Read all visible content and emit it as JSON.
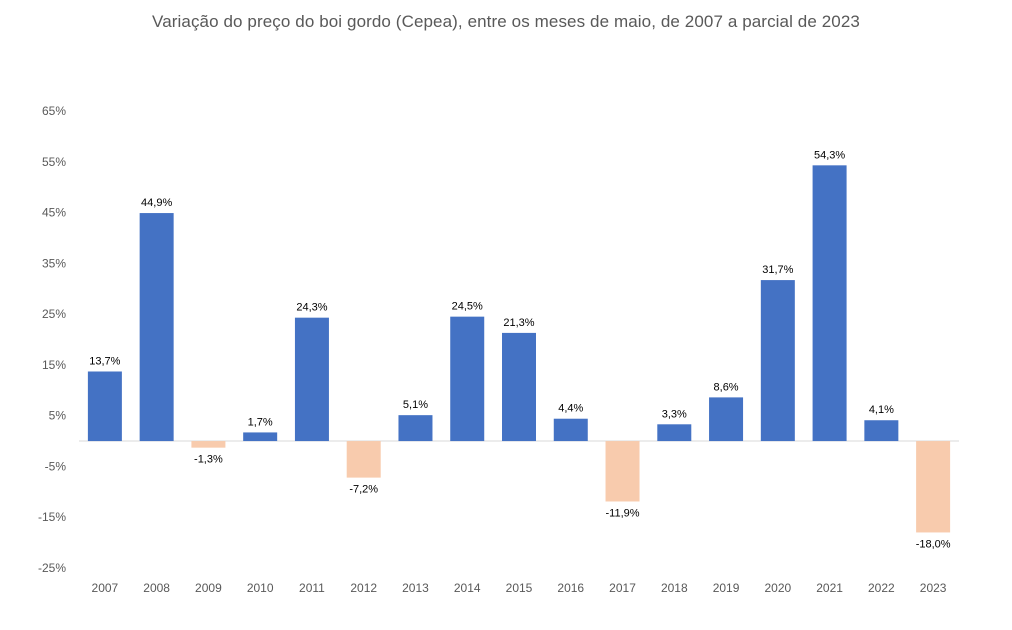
{
  "chart_data": {
    "type": "bar",
    "title": "Variação do preço do boi gordo (Cepea), entre os meses de maio, de 2007 a parcial de 2023",
    "xlabel": "",
    "ylabel": "",
    "categories": [
      "2007",
      "2008",
      "2009",
      "2010",
      "2011",
      "2012",
      "2013",
      "2014",
      "2015",
      "2016",
      "2017",
      "2018",
      "2019",
      "2020",
      "2021",
      "2022",
      "2023"
    ],
    "values": [
      13.7,
      44.9,
      -1.3,
      1.7,
      24.3,
      -7.2,
      5.1,
      24.5,
      21.3,
      4.4,
      -11.9,
      3.3,
      8.6,
      31.7,
      54.3,
      4.1,
      -18.0
    ],
    "data_labels": [
      "13,7%",
      "44,9%",
      "-1,3%",
      "1,7%",
      "24,3%",
      "-7,2%",
      "5,1%",
      "24,5%",
      "21,3%",
      "4,4%",
      "-11,9%",
      "3,3%",
      "8,6%",
      "31,7%",
      "54,3%",
      "4,1%",
      "-18,0%"
    ],
    "y_ticks": [
      65,
      55,
      45,
      35,
      25,
      15,
      5,
      -5,
      -15,
      -25
    ],
    "y_tick_labels": [
      "65%",
      "55%",
      "45%",
      "35%",
      "25%",
      "15%",
      "5%",
      "-5%",
      "-15%",
      "-25%"
    ],
    "ylim": [
      -25,
      65
    ],
    "grid": false,
    "legend": "none",
    "colors": {
      "positive": "#4472C4",
      "negative": "#F8CBAD",
      "axis": "#D9D9D9"
    }
  }
}
